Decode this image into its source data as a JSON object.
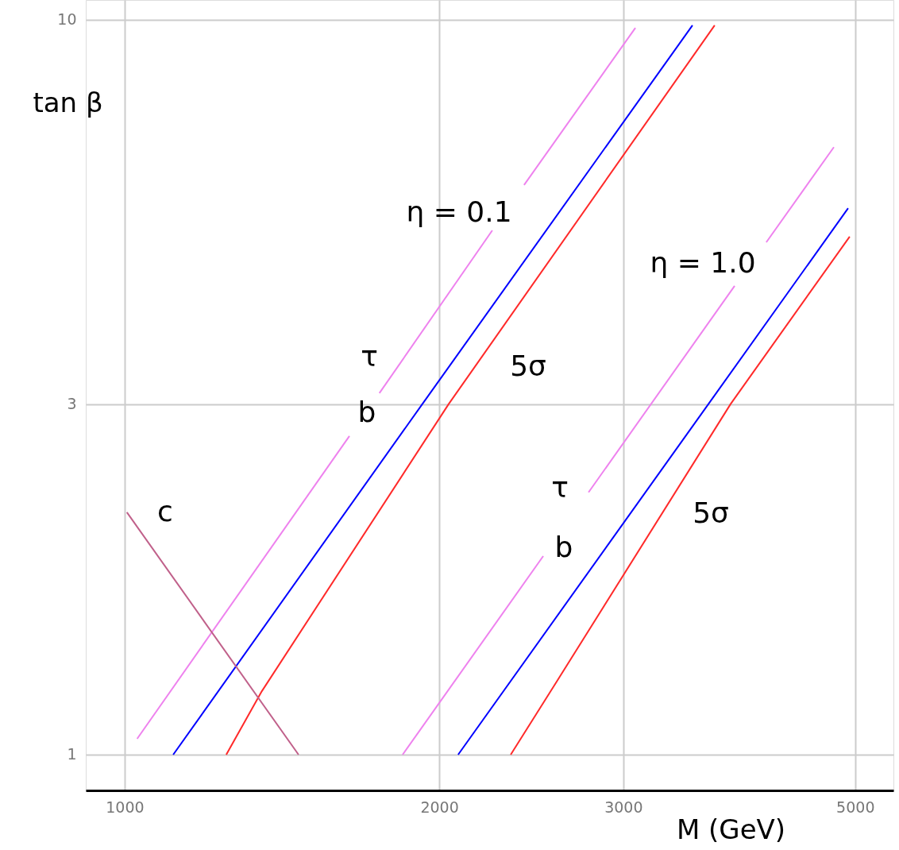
{
  "chart_data": {
    "type": "line",
    "xlabel": "M (GeV)",
    "ylabel": "tan β",
    "log": "xy",
    "xlim": [
      918,
      5440
    ],
    "ylim": [
      0.894,
      10.64
    ],
    "xticks": [
      1000,
      2000,
      3000,
      5000
    ],
    "yticks": [
      1,
      3,
      10
    ],
    "grid": true,
    "legend": false,
    "line_style": "solid",
    "marker": "none",
    "series": [
      {
        "color": "#ee82ee",
        "x": [
          1028,
          1641,
          null,
          1753,
          2248,
          null,
          2411,
          3081
        ],
        "values": [
          1.051,
          2.714,
          null,
          3.104,
          5.17,
          null,
          5.96,
          9.75
        ]
      },
      {
        "color": "#0000ff",
        "x": [
          1113,
          1927,
          3494
        ],
        "values": [
          1.0,
          3.0,
          9.83
        ]
      },
      {
        "color": "#ff2a2a",
        "x": [
          1251,
          1353,
          2042,
          3669
        ],
        "values": [
          1.0,
          1.22,
          3.0,
          9.83
        ]
      },
      {
        "color": "#ee82ee",
        "x": [
          1845,
          2515,
          null,
          2779,
          3834,
          null,
          4111,
          4771
        ],
        "values": [
          1.0,
          1.863,
          null,
          2.275,
          4.344,
          null,
          4.98,
          6.71
        ]
      },
      {
        "color": "#0000ff",
        "x": [
          2085,
          3619,
          4923
        ],
        "values": [
          1.0,
          3.0,
          5.54
        ]
      },
      {
        "color": "#ff2a2a",
        "x": [
          2341,
          2585,
          3800,
          4940
        ],
        "values": [
          1.0,
          1.251,
          3.0,
          5.07
        ]
      },
      {
        "color": "#c0608a",
        "x": [
          1005,
          1467
        ],
        "values": [
          2.137,
          1.0
        ]
      }
    ],
    "annotations": [
      "η = 0.1",
      "η = 1.0",
      "τ",
      "b",
      "5σ",
      "τ",
      "b",
      "5σ",
      "c"
    ]
  }
}
